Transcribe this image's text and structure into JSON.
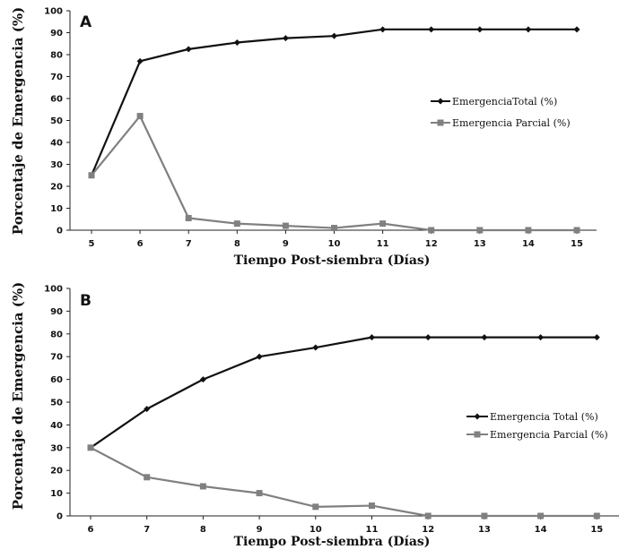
{
  "chart_data": [
    {
      "type": "line",
      "panel_label": "A",
      "xlabel": "Tiempo Post-siembra (Días)",
      "ylabel": "Porcentaje de Emergencia  (%)",
      "x": [
        5,
        6,
        7,
        8,
        9,
        10,
        11,
        12,
        13,
        14,
        15
      ],
      "ylim": [
        0,
        100
      ],
      "yticks": [
        0,
        10,
        20,
        30,
        40,
        50,
        60,
        70,
        80,
        90,
        100
      ],
      "grid": false,
      "legend_position": "right",
      "series": [
        {
          "name": "EmergenciaTotal (%)",
          "color": "#111111",
          "marker": "diamond",
          "values": [
            25,
            77,
            82.5,
            85.5,
            87.5,
            88.5,
            91.5,
            91.5,
            91.5,
            91.5,
            91.5
          ]
        },
        {
          "name": "Emergencia Parcial (%)",
          "color": "#808080",
          "marker": "square",
          "values": [
            25,
            52,
            5.5,
            3,
            2,
            1,
            3,
            0,
            0,
            0,
            0
          ]
        }
      ]
    },
    {
      "type": "line",
      "panel_label": "B",
      "xlabel": "Tiempo Post-siembra (Días)",
      "ylabel": "Porcentaje de Emergencia (%)",
      "x": [
        6,
        7,
        8,
        9,
        10,
        11,
        12,
        13,
        14,
        15
      ],
      "ylim": [
        0,
        100
      ],
      "yticks": [
        0,
        10,
        20,
        30,
        40,
        50,
        60,
        70,
        80,
        90,
        100
      ],
      "grid": false,
      "legend_position": "right",
      "series": [
        {
          "name": "Emergencia Total (%)",
          "color": "#111111",
          "marker": "diamond",
          "values": [
            30,
            47,
            60,
            70,
            74,
            78.5,
            78.5,
            78.5,
            78.5,
            78.5
          ]
        },
        {
          "name": "Emergencia Parcial (%)",
          "color": "#808080",
          "marker": "square",
          "values": [
            30,
            17,
            13,
            10,
            4,
            4.5,
            0,
            0,
            0,
            0
          ]
        }
      ]
    }
  ]
}
